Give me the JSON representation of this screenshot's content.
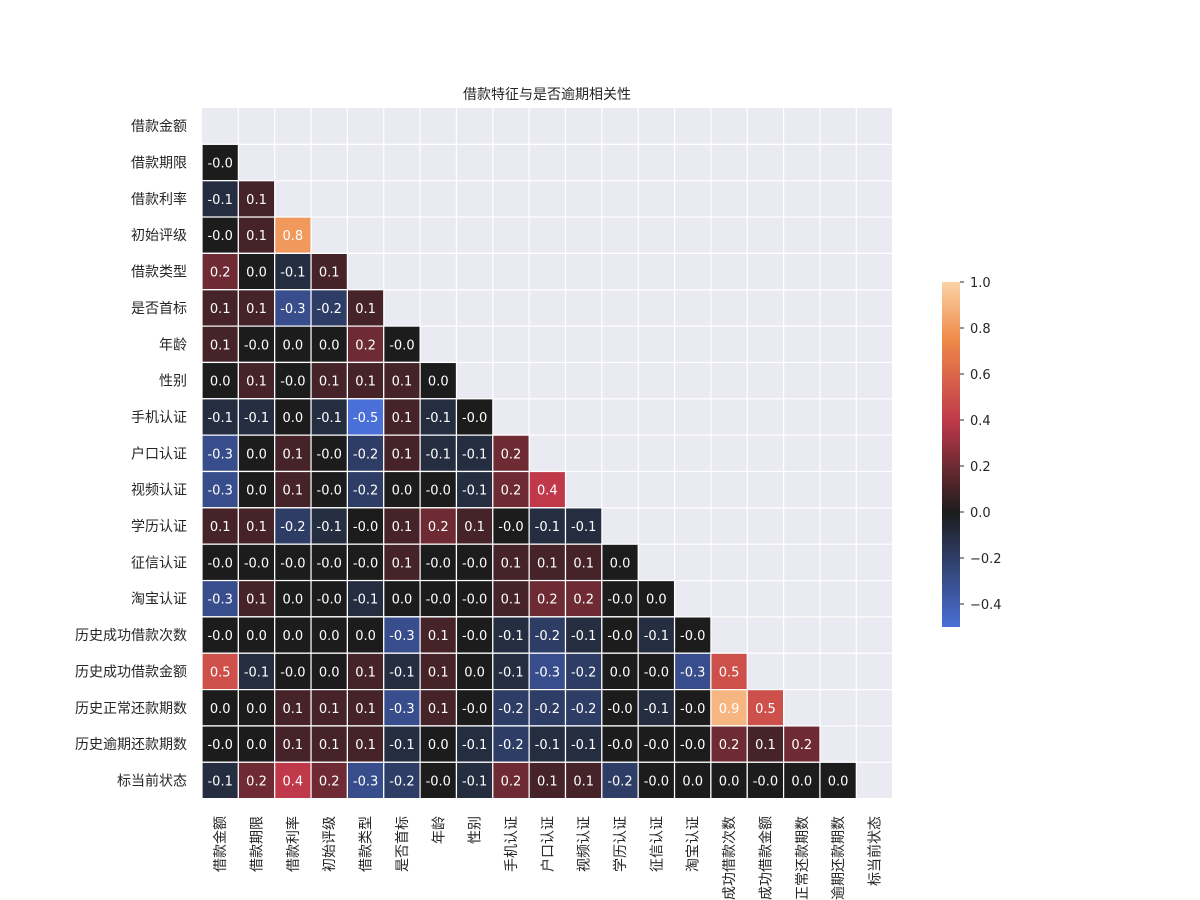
{
  "chart_data": {
    "type": "heatmap",
    "title": "借款特征与是否逾期相关性",
    "xlabel": "",
    "ylabel": "",
    "row_labels": [
      "借款金额",
      "借款期限",
      "借款利率",
      "初始评级",
      "借款类型",
      "是否首标",
      "年龄",
      "性别",
      "手机认证",
      "户口认证",
      "视频认证",
      "学历认证",
      "征信认证",
      "淘宝认证",
      "历史成功借款次数",
      "历史成功借款金额",
      "历史正常还款期数",
      "历史逾期还款期数",
      "标当前状态"
    ],
    "col_labels": [
      "借款金额",
      "借款期限",
      "借款利率",
      "初始评级",
      "借款类型",
      "是否首标",
      "年龄",
      "性别",
      "手机认证",
      "户口认证",
      "视频认证",
      "学历认证",
      "征信认证",
      "淘宝认证",
      "历史成功借款次数",
      "历史成功借款金额",
      "历史正常还款期数",
      "历史逾期还款期数",
      "标当前状态"
    ],
    "mask": "upper-triangle-including-diagonal",
    "values": [
      [],
      [
        -0.0
      ],
      [
        -0.1,
        0.1
      ],
      [
        -0.0,
        0.1,
        0.8
      ],
      [
        0.2,
        0.0,
        -0.1,
        0.1
      ],
      [
        0.1,
        0.1,
        -0.3,
        -0.2,
        0.1
      ],
      [
        0.1,
        -0.0,
        0.0,
        0.0,
        0.2,
        -0.0
      ],
      [
        0.0,
        0.1,
        -0.0,
        0.1,
        0.1,
        0.1,
        0.0
      ],
      [
        -0.1,
        -0.1,
        0.0,
        -0.1,
        -0.5,
        0.1,
        -0.1,
        -0.0
      ],
      [
        -0.3,
        0.0,
        0.1,
        -0.0,
        -0.2,
        0.1,
        -0.1,
        -0.1,
        0.2
      ],
      [
        -0.3,
        0.0,
        0.1,
        -0.0,
        -0.2,
        0.0,
        -0.0,
        -0.1,
        0.2,
        0.4
      ],
      [
        0.1,
        0.1,
        -0.2,
        -0.1,
        -0.0,
        0.1,
        0.2,
        0.1,
        -0.0,
        -0.1,
        -0.1
      ],
      [
        -0.0,
        -0.0,
        -0.0,
        -0.0,
        -0.0,
        0.1,
        -0.0,
        -0.0,
        0.1,
        0.1,
        0.1,
        0.0
      ],
      [
        -0.3,
        0.1,
        0.0,
        -0.0,
        -0.1,
        0.0,
        -0.0,
        -0.0,
        0.1,
        0.2,
        0.2,
        -0.0,
        0.0
      ],
      [
        -0.0,
        0.0,
        0.0,
        0.0,
        0.0,
        -0.3,
        0.1,
        -0.0,
        -0.1,
        -0.2,
        -0.1,
        -0.0,
        -0.1,
        -0.0
      ],
      [
        0.5,
        -0.1,
        -0.0,
        0.0,
        0.1,
        -0.1,
        0.1,
        0.0,
        -0.1,
        -0.3,
        -0.2,
        0.0,
        -0.0,
        -0.3,
        0.5
      ],
      [
        0.0,
        0.0,
        0.1,
        0.1,
        0.1,
        -0.3,
        0.1,
        -0.0,
        -0.2,
        -0.2,
        -0.2,
        -0.0,
        -0.1,
        -0.0,
        0.9,
        0.5
      ],
      [
        -0.0,
        0.0,
        0.1,
        0.1,
        0.1,
        -0.1,
        0.0,
        -0.1,
        -0.2,
        -0.1,
        -0.1,
        -0.0,
        -0.0,
        -0.0,
        0.2,
        0.1,
        0.2
      ],
      [
        -0.1,
        0.2,
        0.4,
        0.2,
        -0.3,
        -0.2,
        -0.0,
        -0.1,
        0.2,
        0.1,
        0.1,
        -0.2,
        -0.0,
        0.0,
        0.0,
        -0.0,
        0.0,
        0.0
      ]
    ],
    "colorbar": {
      "min": -0.5,
      "max": 1.0,
      "center": 0.0,
      "ticks": [
        "1.0",
        "0.8",
        "0.6",
        "0.4",
        "0.2",
        "0.0",
        "−0.2",
        "−0.4"
      ],
      "tick_values": [
        1.0,
        0.8,
        0.6,
        0.4,
        0.2,
        0.0,
        -0.2,
        -0.4
      ]
    },
    "colors": {
      "background": "#eaeaf2",
      "grid": "#ffffff",
      "neg_end": "#4a6fd6",
      "center": "#1c1c1c",
      "pos_mid": "#c0394a",
      "pos_orange": "#ef8a4a",
      "pos_end": "#fbd3a6",
      "text": "#ffffff",
      "label": "#262626"
    }
  }
}
